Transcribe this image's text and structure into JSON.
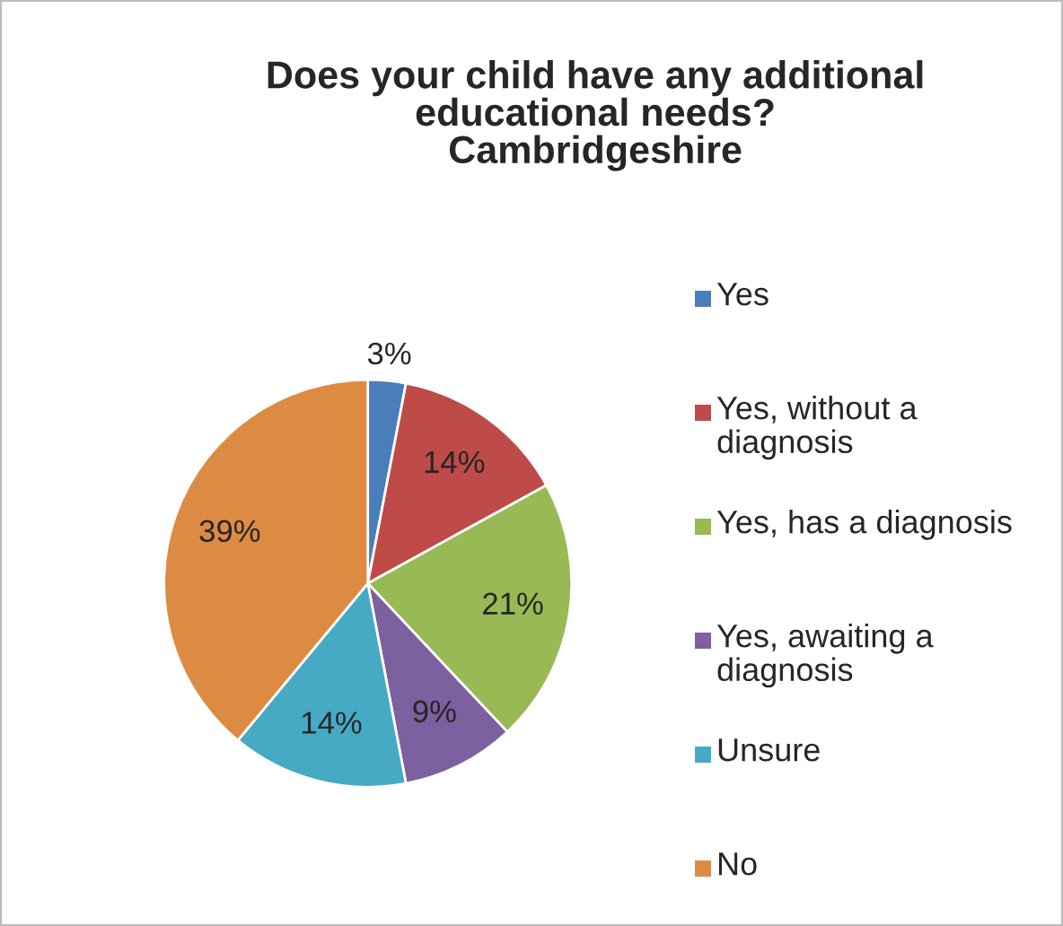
{
  "chart_data": {
    "type": "pie",
    "title": "Does your child have any additional\neducational needs?\nCambridgeshire",
    "categories": [
      "Yes",
      "Yes, without a diagnosis",
      "Yes, has a diagnosis",
      "Yes, awaiting a diagnosis",
      "Unsure",
      "No"
    ],
    "values": [
      3,
      14,
      21,
      9,
      14,
      39
    ],
    "value_labels": [
      "3%",
      "14%",
      "21%",
      "9%",
      "14%",
      "39%"
    ],
    "colors": [
      "#4a7ebb",
      "#be4b48",
      "#98b954",
      "#7d60a0",
      "#46aac5",
      "#dd8a43"
    ],
    "legend": "right"
  }
}
